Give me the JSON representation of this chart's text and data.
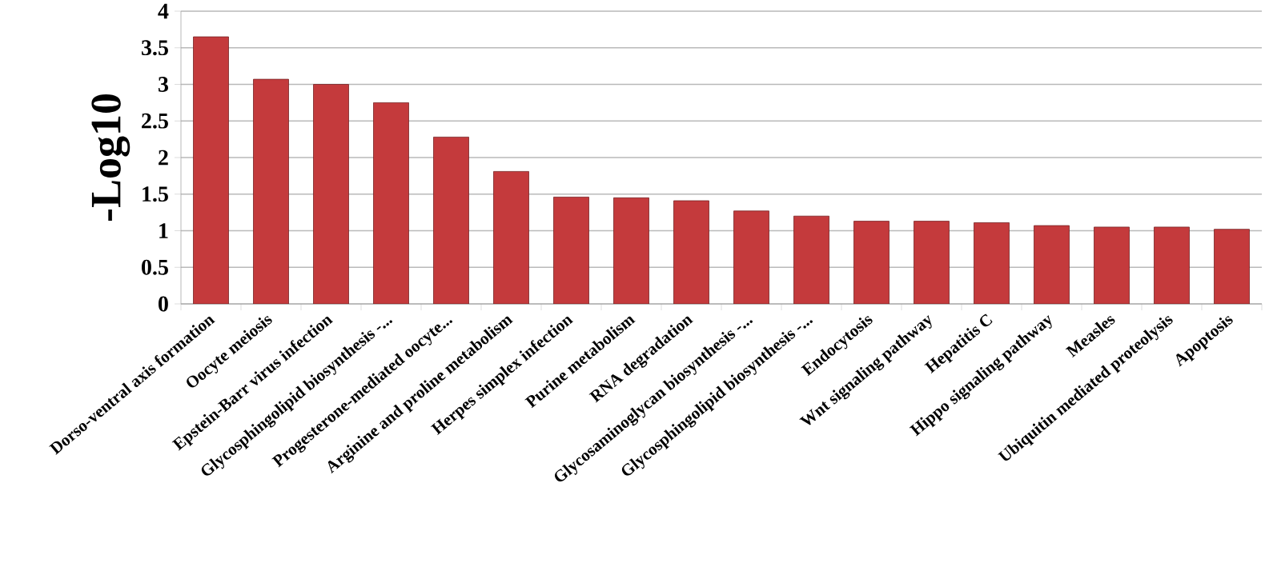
{
  "chart_data": {
    "type": "bar",
    "ylabel": "-Log10",
    "categories": [
      "Dorso-ventral axis formation",
      "Oocyte meiosis",
      "Epstein-Barr virus infection",
      "Glycosphingolipid biosynthesis -...",
      "Progesterone-mediated oocyte...",
      "Arginine and proline metabolism",
      "Herpes simplex infection",
      "Purine metabolism",
      "RNA degradation",
      "Glycosaminoglycan biosynthesis -...",
      "Glycosphingolipid biosynthesis -...",
      "Endocytosis",
      "Wnt signaling pathway",
      "Hepatitis C",
      "Hippo signaling pathway",
      "Measles",
      "Ubiquitin mediated proteolysis",
      "Apoptosis"
    ],
    "values": [
      3.65,
      3.07,
      3.0,
      2.75,
      2.28,
      1.81,
      1.46,
      1.45,
      1.41,
      1.27,
      1.2,
      1.13,
      1.13,
      1.11,
      1.07,
      1.05,
      1.05,
      1.02
    ],
    "color": "#c43a3c",
    "ylim": [
      0,
      4
    ],
    "yticks": [
      0,
      0.5,
      1,
      1.5,
      2,
      2.5,
      3,
      3.5,
      4
    ],
    "grid": "y"
  }
}
